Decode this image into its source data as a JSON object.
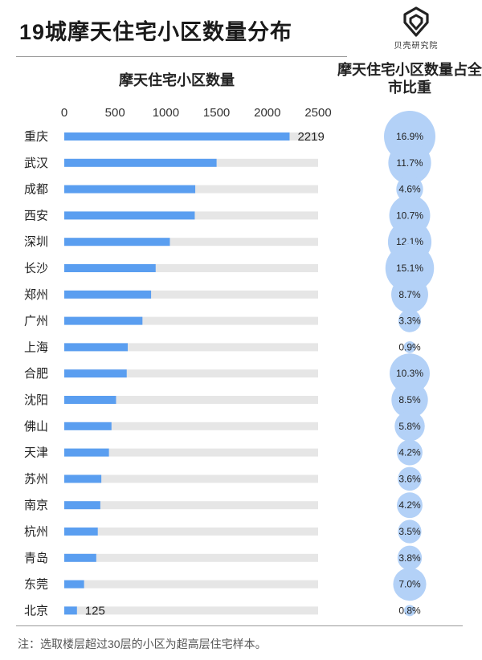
{
  "title": "19城摩天住宅小区数量分布",
  "logo": {
    "icon": "beike-logo-icon",
    "text": "贝壳研究院"
  },
  "footnote": "注：选取楼层超过30层的小区为超高层住宅样本。",
  "chart_data": [
    {
      "type": "bar",
      "orientation": "horizontal",
      "title": "摩天住宅小区数量",
      "xlim": [
        0,
        2500
      ],
      "ticks": [
        "0",
        "500",
        "1000",
        "1500",
        "2000",
        "2500"
      ],
      "grid": false,
      "categories": [
        "重庆",
        "武汉",
        "成都",
        "西安",
        "深圳",
        "长沙",
        "郑州",
        "广州",
        "上海",
        "合肥",
        "沈阳",
        "佛山",
        "天津",
        "苏州",
        "南京",
        "杭州",
        "青岛",
        "东莞",
        "北京"
      ],
      "values": [
        2219,
        1500,
        1290,
        1285,
        1040,
        900,
        855,
        770,
        625,
        615,
        510,
        465,
        440,
        365,
        355,
        330,
        315,
        195,
        125
      ],
      "data_labels": {
        "0": "2219",
        "18": "125"
      },
      "bar_color": "#5a9ef0",
      "track_color": "#e6e6e6"
    },
    {
      "type": "scatter",
      "subtype": "bubble",
      "title": "摩天住宅小区数量占全市比重",
      "categories": [
        "重庆",
        "武汉",
        "成都",
        "西安",
        "深圳",
        "长沙",
        "郑州",
        "广州",
        "上海",
        "合肥",
        "沈阳",
        "佛山",
        "天津",
        "苏州",
        "南京",
        "杭州",
        "青岛",
        "东莞",
        "北京"
      ],
      "values": [
        16.9,
        11.7,
        4.6,
        10.7,
        12.1,
        15.1,
        8.7,
        3.3,
        0.9,
        10.3,
        8.5,
        5.8,
        4.2,
        3.6,
        4.2,
        3.5,
        3.8,
        7.0,
        0.8
      ],
      "labels": [
        "16.9%",
        "11.7%",
        "4.6%",
        "10.7%",
        "12.1%",
        "15.1%",
        "8.7%",
        "3.3%",
        "0.9%",
        "10.3%",
        "8.5%",
        "5.8%",
        "4.2%",
        "3.6%",
        "4.2%",
        "3.5%",
        "3.8%",
        "7.0%",
        "0.8%"
      ],
      "bubble_color": "#b3d1f7"
    }
  ]
}
